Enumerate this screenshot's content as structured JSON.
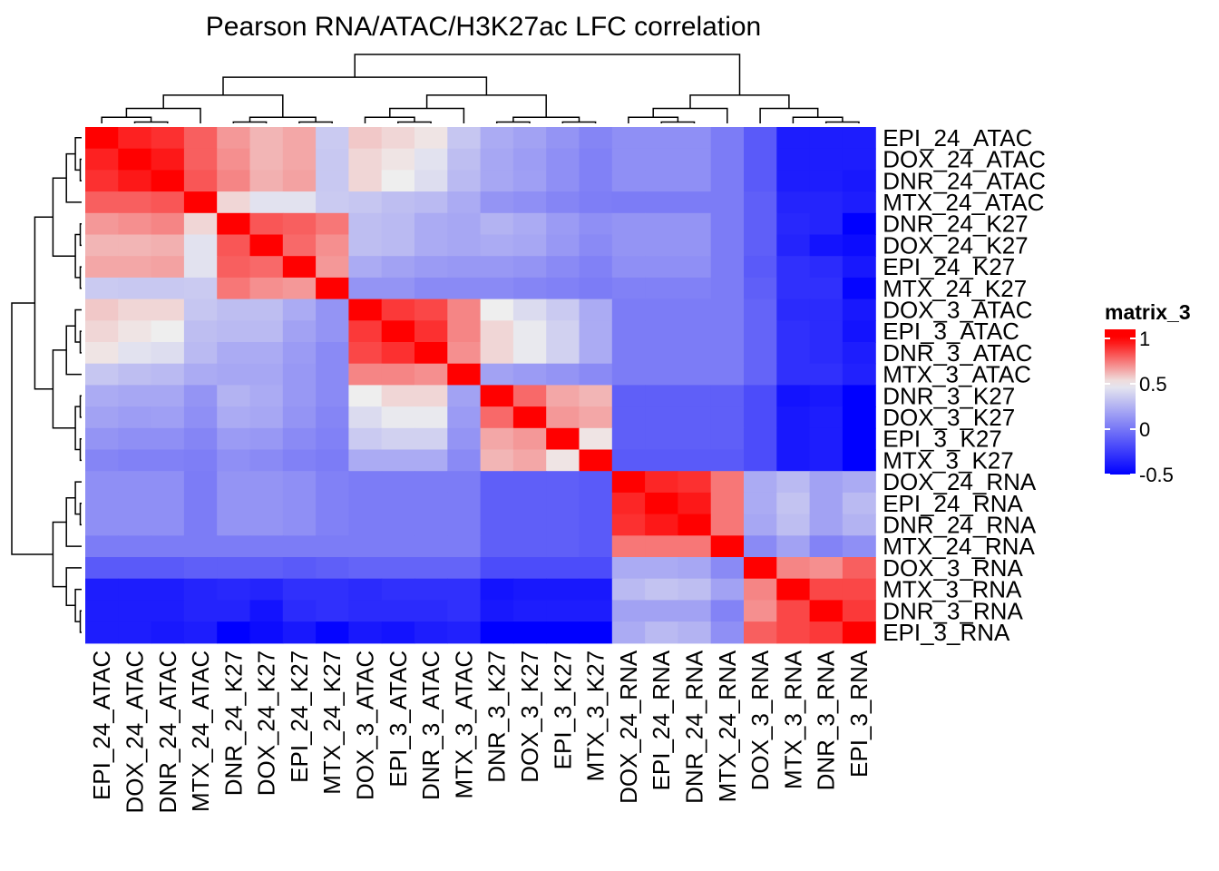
{
  "chart_data": {
    "type": "heatmap",
    "title": "Pearson RNA/ATAC/H3K27ac LFC correlation",
    "legend": {
      "title": "matrix_3",
      "ticks": [
        -0.5,
        0,
        0.5,
        1
      ],
      "tick_labels": [
        "-0.5",
        "0",
        "0.5",
        "1"
      ],
      "colors": {
        "low": "#0000FF",
        "mid": "#EEEEEE",
        "high": "#FF0000"
      },
      "range": [
        -0.5,
        1.1
      ]
    },
    "rows": [
      "EPI_24_ATAC",
      "DOX_24_ATAC",
      "DNR_24_ATAC",
      "MTX_24_ATAC",
      "DNR_24_K27",
      "DOX_24_K27",
      "EPI_24_K27",
      "MTX_24_K27",
      "DOX_3_ATAC",
      "EPI_3_ATAC",
      "DNR_3_ATAC",
      "MTX_3_ATAC",
      "DNR_3_K27",
      "DOX_3_K27",
      "EPI_3_K27",
      "MTX_3_K27",
      "DOX_24_RNA",
      "EPI_24_RNA",
      "DNR_24_RNA",
      "MTX_24_RNA",
      "DOX_3_RNA",
      "MTX_3_RNA",
      "DNR_3_RNA",
      "EPI_3_RNA"
    ],
    "columns": [
      "EPI_24_ATAC",
      "DOX_24_ATAC",
      "DNR_24_ATAC",
      "MTX_24_ATAC",
      "DNR_24_K27",
      "DOX_24_K27",
      "EPI_24_K27",
      "MTX_24_K27",
      "DOX_3_ATAC",
      "EPI_3_ATAC",
      "DNR_3_ATAC",
      "MTX_3_ATAC",
      "DNR_3_K27",
      "DOX_3_K27",
      "EPI_3_K27",
      "MTX_3_K27",
      "DOX_24_RNA",
      "EPI_24_RNA",
      "DNR_24_RNA",
      "MTX_24_RNA",
      "DOX_3_RNA",
      "MTX_3_RNA",
      "DNR_3_RNA",
      "EPI_3_RNA"
    ],
    "values": [
      [
        1.0,
        0.93,
        0.9,
        0.8,
        0.68,
        0.62,
        0.65,
        0.35,
        0.58,
        0.55,
        0.52,
        0.33,
        0.22,
        0.18,
        0.12,
        0.06,
        0.1,
        0.1,
        0.1,
        0.02,
        -0.12,
        -0.38,
        -0.38,
        -0.38
      ],
      [
        0.93,
        1.0,
        0.95,
        0.8,
        0.7,
        0.62,
        0.65,
        0.34,
        0.55,
        0.52,
        0.45,
        0.3,
        0.2,
        0.16,
        0.1,
        0.04,
        0.1,
        0.1,
        0.1,
        0.02,
        -0.12,
        -0.38,
        -0.38,
        -0.38
      ],
      [
        0.9,
        0.95,
        1.0,
        0.82,
        0.72,
        0.63,
        0.66,
        0.34,
        0.55,
        0.5,
        0.43,
        0.28,
        0.2,
        0.17,
        0.1,
        0.04,
        0.1,
        0.1,
        0.1,
        0.02,
        -0.12,
        -0.38,
        -0.38,
        -0.4
      ],
      [
        0.8,
        0.8,
        0.82,
        1.0,
        0.55,
        0.45,
        0.45,
        0.35,
        0.33,
        0.3,
        0.28,
        0.22,
        0.12,
        0.1,
        0.06,
        0.03,
        0.02,
        0.02,
        0.02,
        0.02,
        -0.1,
        -0.35,
        -0.35,
        -0.38
      ],
      [
        0.68,
        0.7,
        0.72,
        0.55,
        1.0,
        0.82,
        0.8,
        0.75,
        0.3,
        0.28,
        0.22,
        0.2,
        0.25,
        0.22,
        0.15,
        0.1,
        0.12,
        0.12,
        0.12,
        0.02,
        -0.1,
        -0.33,
        -0.35,
        -0.5
      ],
      [
        0.62,
        0.62,
        0.63,
        0.45,
        0.82,
        1.0,
        0.78,
        0.7,
        0.3,
        0.28,
        0.22,
        0.2,
        0.22,
        0.2,
        0.14,
        0.08,
        0.12,
        0.12,
        0.12,
        0.02,
        -0.1,
        -0.35,
        -0.42,
        -0.45
      ],
      [
        0.65,
        0.65,
        0.66,
        0.45,
        0.8,
        0.78,
        1.0,
        0.68,
        0.22,
        0.18,
        0.15,
        0.14,
        0.14,
        0.12,
        0.08,
        0.04,
        0.1,
        0.1,
        0.1,
        0.02,
        -0.12,
        -0.3,
        -0.32,
        -0.4
      ],
      [
        0.35,
        0.34,
        0.34,
        0.35,
        0.75,
        0.7,
        0.68,
        1.0,
        0.12,
        0.12,
        0.08,
        0.08,
        0.08,
        0.06,
        0.04,
        0.02,
        0.04,
        0.04,
        0.04,
        0.02,
        -0.1,
        -0.3,
        -0.3,
        -0.48
      ],
      [
        0.58,
        0.55,
        0.55,
        0.33,
        0.3,
        0.3,
        0.22,
        0.12,
        1.0,
        0.88,
        0.85,
        0.72,
        0.5,
        0.42,
        0.35,
        0.22,
        0.02,
        0.02,
        0.02,
        0.02,
        -0.08,
        -0.32,
        -0.32,
        -0.4
      ],
      [
        0.55,
        0.52,
        0.5,
        0.3,
        0.28,
        0.28,
        0.18,
        0.12,
        0.88,
        1.0,
        0.9,
        0.72,
        0.55,
        0.48,
        0.38,
        0.22,
        0.02,
        0.02,
        0.02,
        0.02,
        -0.08,
        -0.3,
        -0.32,
        -0.42
      ],
      [
        0.52,
        0.45,
        0.43,
        0.28,
        0.22,
        0.22,
        0.15,
        0.08,
        0.85,
        0.9,
        1.0,
        0.7,
        0.55,
        0.48,
        0.38,
        0.22,
        0.02,
        0.02,
        0.02,
        0.02,
        -0.08,
        -0.3,
        -0.32,
        -0.38
      ],
      [
        0.33,
        0.3,
        0.28,
        0.22,
        0.2,
        0.2,
        0.14,
        0.08,
        0.72,
        0.72,
        0.7,
        1.0,
        0.18,
        0.15,
        0.12,
        0.08,
        0.02,
        0.02,
        0.02,
        0.02,
        -0.08,
        -0.3,
        -0.3,
        -0.36
      ],
      [
        0.22,
        0.2,
        0.2,
        0.12,
        0.25,
        0.22,
        0.14,
        0.08,
        0.5,
        0.55,
        0.55,
        0.18,
        1.0,
        0.78,
        0.65,
        0.62,
        -0.1,
        -0.1,
        -0.1,
        -0.1,
        -0.18,
        -0.42,
        -0.4,
        -0.5
      ],
      [
        0.18,
        0.16,
        0.17,
        0.1,
        0.22,
        0.2,
        0.12,
        0.06,
        0.42,
        0.48,
        0.48,
        0.15,
        0.78,
        1.0,
        0.68,
        0.65,
        -0.1,
        -0.1,
        -0.1,
        -0.1,
        -0.18,
        -0.4,
        -0.38,
        -0.5
      ],
      [
        0.12,
        0.1,
        0.1,
        0.06,
        0.15,
        0.14,
        0.08,
        0.04,
        0.35,
        0.38,
        0.38,
        0.12,
        0.65,
        0.68,
        1.0,
        0.52,
        -0.1,
        -0.1,
        -0.1,
        -0.1,
        -0.18,
        -0.4,
        -0.38,
        -0.5
      ],
      [
        0.06,
        0.04,
        0.04,
        0.03,
        0.1,
        0.08,
        0.04,
        0.02,
        0.22,
        0.22,
        0.22,
        0.08,
        0.62,
        0.65,
        0.52,
        1.0,
        -0.12,
        -0.12,
        -0.12,
        -0.12,
        -0.18,
        -0.4,
        -0.38,
        -0.5
      ],
      [
        0.1,
        0.1,
        0.1,
        0.02,
        0.12,
        0.12,
        0.1,
        0.04,
        0.02,
        0.02,
        0.02,
        0.02,
        -0.1,
        -0.1,
        -0.1,
        -0.12,
        1.0,
        0.92,
        0.9,
        0.75,
        0.22,
        0.28,
        0.18,
        0.22
      ],
      [
        0.1,
        0.1,
        0.1,
        0.02,
        0.12,
        0.12,
        0.1,
        0.04,
        0.02,
        0.02,
        0.02,
        0.02,
        -0.1,
        -0.1,
        -0.1,
        -0.12,
        0.92,
        1.0,
        0.95,
        0.75,
        0.22,
        0.32,
        0.18,
        0.28
      ],
      [
        0.1,
        0.1,
        0.1,
        0.02,
        0.12,
        0.12,
        0.1,
        0.04,
        0.02,
        0.02,
        0.02,
        0.02,
        -0.1,
        -0.1,
        -0.1,
        -0.12,
        0.9,
        0.95,
        1.0,
        0.75,
        0.2,
        0.3,
        0.18,
        0.25
      ],
      [
        0.02,
        0.02,
        0.02,
        0.02,
        0.02,
        0.02,
        0.02,
        0.02,
        0.02,
        0.02,
        0.02,
        0.02,
        -0.1,
        -0.1,
        -0.1,
        -0.12,
        0.75,
        0.75,
        0.75,
        1.0,
        0.08,
        0.18,
        0.05,
        0.1
      ],
      [
        -0.12,
        -0.12,
        -0.12,
        -0.1,
        -0.1,
        -0.1,
        -0.12,
        -0.1,
        -0.08,
        -0.08,
        -0.08,
        -0.08,
        -0.18,
        -0.18,
        -0.18,
        -0.18,
        0.22,
        0.22,
        0.2,
        0.08,
        1.0,
        0.72,
        0.7,
        0.8
      ],
      [
        -0.38,
        -0.38,
        -0.38,
        -0.35,
        -0.33,
        -0.35,
        -0.3,
        -0.3,
        -0.32,
        -0.3,
        -0.3,
        -0.3,
        -0.42,
        -0.4,
        -0.4,
        -0.4,
        0.28,
        0.32,
        0.3,
        0.18,
        0.72,
        1.0,
        0.85,
        0.85
      ],
      [
        -0.38,
        -0.38,
        -0.38,
        -0.35,
        -0.35,
        -0.42,
        -0.32,
        -0.3,
        -0.32,
        -0.32,
        -0.32,
        -0.3,
        -0.4,
        -0.38,
        -0.38,
        -0.38,
        0.18,
        0.18,
        0.18,
        0.05,
        0.7,
        0.85,
        1.0,
        0.88
      ],
      [
        -0.38,
        -0.38,
        -0.4,
        -0.38,
        -0.5,
        -0.45,
        -0.4,
        -0.48,
        -0.4,
        -0.42,
        -0.38,
        -0.36,
        -0.5,
        -0.5,
        -0.5,
        -0.5,
        0.22,
        0.28,
        0.25,
        0.1,
        0.8,
        0.85,
        0.88,
        1.0
      ]
    ],
    "grid": false,
    "legend_placement": "right",
    "dendrograms": "rows-left, columns-top"
  }
}
